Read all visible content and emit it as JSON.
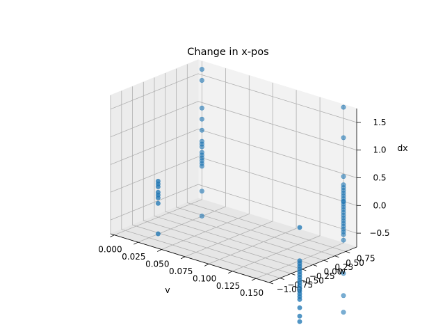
{
  "chart_data": {
    "type": "scatter3d",
    "title": "Change in x-pos",
    "xlabel": "v",
    "ylabel": "w",
    "zlabel": "dx",
    "xlim": [
      -0.004,
      0.164
    ],
    "ylim": [
      -1.0,
      1.0
    ],
    "zlim": [
      -0.75,
      1.75
    ],
    "x_ticks": [
      "0.000",
      "0.025",
      "0.050",
      "0.075",
      "0.100",
      "0.125",
      "0.150"
    ],
    "x_tick_values": [
      0.0,
      0.025,
      0.05,
      0.075,
      0.1,
      0.125,
      0.15
    ],
    "y_ticks": [
      "−1.00",
      "−0.75",
      "−0.50",
      "−0.25",
      "0.00",
      "0.25",
      "0.50",
      "0.75"
    ],
    "y_tick_values": [
      -1.0,
      -0.75,
      -0.5,
      -0.25,
      0.0,
      0.25,
      0.5,
      0.75
    ],
    "z_ticks": [
      "−0.5",
      "0.0",
      "0.5",
      "1.0",
      "1.5"
    ],
    "z_tick_values": [
      -0.5,
      0.0,
      0.5,
      1.0,
      1.5
    ],
    "grid": true,
    "color": "#1f77b4",
    "series": [
      {
        "points": [
          [
            0.0,
            0.0,
            -0.1
          ],
          [
            0.0,
            0.0,
            -0.2
          ],
          [
            0.0,
            0.0,
            -0.3
          ],
          [
            0.0,
            0.0,
            -0.4
          ],
          [
            0.0,
            0.0,
            -0.5
          ],
          [
            0.0,
            0.0,
            -0.15
          ],
          [
            0.0,
            0.0,
            -0.35
          ],
          [
            0.0,
            0.0,
            -1.05
          ],
          [
            0.15,
            0.0,
            -0.75
          ],
          [
            0.15,
            0.0,
            -0.85
          ],
          [
            0.15,
            0.0,
            -0.95
          ],
          [
            0.15,
            0.0,
            -1.05
          ],
          [
            0.15,
            0.0,
            -1.15
          ],
          [
            0.15,
            0.0,
            -1.25
          ],
          [
            0.15,
            0.0,
            -1.35
          ],
          [
            0.15,
            0.0,
            -1.45
          ],
          [
            0.15,
            0.0,
            -0.8
          ],
          [
            0.15,
            0.0,
            -0.9
          ],
          [
            0.15,
            0.0,
            -1.0
          ],
          [
            0.15,
            0.0,
            -1.1
          ],
          [
            0.15,
            0.0,
            -1.2
          ],
          [
            0.15,
            0.0,
            -1.3
          ],
          [
            0.15,
            0.0,
            -1.4
          ],
          [
            0.15,
            0.0,
            -1.6
          ],
          [
            0.15,
            0.0,
            -1.75
          ],
          [
            0.15,
            0.0,
            -1.85
          ],
          [
            0.15,
            0.0,
            -0.15
          ],
          [
            0.0,
            1.0,
            1.6
          ],
          [
            0.0,
            1.0,
            1.4
          ],
          [
            0.0,
            1.0,
            0.9
          ],
          [
            0.0,
            1.0,
            0.7
          ],
          [
            0.0,
            1.0,
            0.5
          ],
          [
            0.0,
            1.0,
            0.3
          ],
          [
            0.0,
            1.0,
            0.25
          ],
          [
            0.0,
            1.0,
            0.2
          ],
          [
            0.0,
            1.0,
            0.1
          ],
          [
            0.0,
            1.0,
            0.05
          ],
          [
            0.0,
            1.0,
            -0.05
          ],
          [
            0.0,
            1.0,
            -0.15
          ],
          [
            0.0,
            1.0,
            0.0
          ],
          [
            0.0,
            1.0,
            -0.1
          ],
          [
            0.0,
            1.0,
            -0.6
          ],
          [
            0.0,
            1.0,
            -1.05
          ],
          [
            0.15,
            1.0,
            0.45
          ],
          [
            0.15,
            1.0,
            0.3
          ],
          [
            0.15,
            1.0,
            0.25
          ],
          [
            0.15,
            1.0,
            0.2
          ],
          [
            0.15,
            1.0,
            0.15
          ],
          [
            0.15,
            1.0,
            0.1
          ],
          [
            0.15,
            1.0,
            0.05
          ],
          [
            0.15,
            1.0,
            0.0
          ],
          [
            0.15,
            1.0,
            -0.05
          ],
          [
            0.15,
            1.0,
            -0.1
          ],
          [
            0.15,
            1.0,
            -0.15
          ],
          [
            0.15,
            1.0,
            -0.2
          ],
          [
            0.15,
            1.0,
            -0.25
          ],
          [
            0.15,
            1.0,
            -0.3
          ],
          [
            0.15,
            1.0,
            -0.35
          ],
          [
            0.15,
            1.0,
            -0.4
          ],
          [
            0.15,
            1.0,
            -0.45
          ],
          [
            0.15,
            1.0,
            -0.5
          ],
          [
            0.15,
            1.0,
            -0.55
          ],
          [
            0.15,
            1.0,
            1.7
          ],
          [
            0.15,
            1.0,
            1.15
          ],
          [
            0.15,
            1.0,
            0.0
          ],
          [
            0.15,
            1.0,
            -0.6
          ],
          [
            0.15,
            1.0,
            -0.7
          ],
          [
            0.15,
            1.0,
            -1.3
          ],
          [
            0.15,
            1.0,
            -1.7
          ],
          [
            0.15,
            1.0,
            -2.0
          ]
        ]
      }
    ]
  }
}
